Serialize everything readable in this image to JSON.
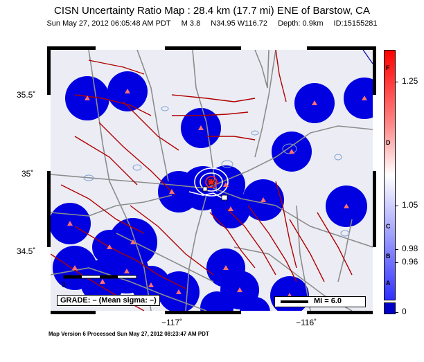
{
  "title": "CISN Uncertainty Ratio Map : 28.4 km (17.7 mi) ENE of Barstow, CA",
  "subtitle": {
    "datetime": "Sun May 27, 2012 06:05:48 AM PDT",
    "magnitude": "M 3.8",
    "location": "N34.95 W116.72",
    "depth": "Depth: 0.9km",
    "id": "ID:15155281"
  },
  "axes": {
    "lat_labels": [
      "35.5˚",
      "35˚",
      "34.5˚"
    ],
    "lon_labels": [
      "−117˚",
      "−116˚"
    ]
  },
  "colorbar": {
    "letters": [
      "F",
      "D",
      "C",
      "B",
      "A"
    ],
    "values": [
      "1.25",
      "1.05",
      "0.98",
      "0.96",
      "0"
    ],
    "colors": {
      "top": "#ff0000",
      "mid": "#ffffff",
      "bottom": "#3030ff",
      "min": "#0000c8"
    }
  },
  "legend": {
    "grade": "GRADE: – (Mean sigma: –)",
    "scale_zero": "0",
    "mi": "MI = 6.0"
  },
  "footer": "Map Version 6 Processed Sun May 27, 2012 08:23:47 AM PDT",
  "map": {
    "background": "#ececf4",
    "station_color": "#0000e0",
    "fault_color": "#b00000",
    "road_color": "#8c8c8c",
    "lake_color": "#7aa0d0"
  }
}
